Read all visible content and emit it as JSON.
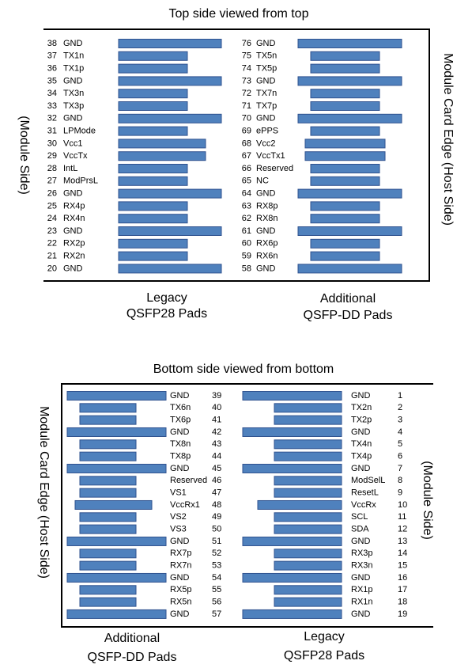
{
  "top": {
    "title": "Top side viewed from top",
    "left_label": "(Module Side)",
    "right_label": "Module Card Edge (Host Side)",
    "left_caption": [
      "Legacy",
      "QSFP28 Pads"
    ],
    "right_caption": [
      "Additional",
      "QSFP-DD Pads"
    ],
    "left_pins": [
      {
        "number": 38,
        "name": "GND"
      },
      {
        "number": 37,
        "name": "TX1n"
      },
      {
        "number": 36,
        "name": "TX1p"
      },
      {
        "number": 35,
        "name": "GND"
      },
      {
        "number": 34,
        "name": "TX3n"
      },
      {
        "number": 33,
        "name": "TX3p"
      },
      {
        "number": 32,
        "name": "GND"
      },
      {
        "number": 31,
        "name": "LPMode"
      },
      {
        "number": 30,
        "name": "Vcc1"
      },
      {
        "number": 29,
        "name": "VccTx"
      },
      {
        "number": 28,
        "name": "IntL"
      },
      {
        "number": 27,
        "name": "ModPrsL"
      },
      {
        "number": 26,
        "name": "GND"
      },
      {
        "number": 25,
        "name": "RX4p"
      },
      {
        "number": 24,
        "name": "RX4n"
      },
      {
        "number": 23,
        "name": "GND"
      },
      {
        "number": 22,
        "name": "RX2p"
      },
      {
        "number": 21,
        "name": "RX2n"
      },
      {
        "number": 20,
        "name": "GND"
      }
    ],
    "right_pins": [
      {
        "number": 76,
        "name": "GND"
      },
      {
        "number": 75,
        "name": "TX5n"
      },
      {
        "number": 74,
        "name": "TX5p"
      },
      {
        "number": 73,
        "name": "GND"
      },
      {
        "number": 72,
        "name": "TX7n"
      },
      {
        "number": 71,
        "name": "TX7p"
      },
      {
        "number": 70,
        "name": "GND"
      },
      {
        "number": 69,
        "name": "ePPS"
      },
      {
        "number": 68,
        "name": "Vcc2"
      },
      {
        "number": 67,
        "name": "VccTx1"
      },
      {
        "number": 66,
        "name": "Reserved"
      },
      {
        "number": 65,
        "name": "NC"
      },
      {
        "number": 64,
        "name": "GND"
      },
      {
        "number": 63,
        "name": "RX8p"
      },
      {
        "number": 62,
        "name": "RX8n"
      },
      {
        "number": 61,
        "name": "GND"
      },
      {
        "number": 60,
        "name": "RX6p"
      },
      {
        "number": 59,
        "name": "RX6n"
      },
      {
        "number": 58,
        "name": "GND"
      }
    ]
  },
  "bottom": {
    "title": "Bottom side viewed from bottom",
    "left_label": "Module Card Edge (Host Side)",
    "right_label": "(Module Side)",
    "left_caption": [
      "Additional",
      "QSFP-DD Pads"
    ],
    "right_caption": [
      "Legacy",
      "QSFP28 Pads"
    ],
    "left_pins": [
      {
        "name": "GND",
        "number": 39
      },
      {
        "name": "TX6n",
        "number": 40
      },
      {
        "name": "TX6p",
        "number": 41
      },
      {
        "name": "GND",
        "number": 42
      },
      {
        "name": "TX8n",
        "number": 43
      },
      {
        "name": "TX8p",
        "number": 44
      },
      {
        "name": "GND",
        "number": 45
      },
      {
        "name": "Reserved",
        "number": 46
      },
      {
        "name": "VS1",
        "number": 47
      },
      {
        "name": "VccRx1",
        "number": 48
      },
      {
        "name": "VS2",
        "number": 49
      },
      {
        "name": "VS3",
        "number": 50
      },
      {
        "name": "GND",
        "number": 51
      },
      {
        "name": "RX7p",
        "number": 52
      },
      {
        "name": "RX7n",
        "number": 53
      },
      {
        "name": "GND",
        "number": 54
      },
      {
        "name": "RX5p",
        "number": 55
      },
      {
        "name": "RX5n",
        "number": 56
      },
      {
        "name": "GND",
        "number": 57
      }
    ],
    "right_pins": [
      {
        "name": "GND",
        "number": 1
      },
      {
        "name": "TX2n",
        "number": 2
      },
      {
        "name": "TX2p",
        "number": 3
      },
      {
        "name": "GND",
        "number": 4
      },
      {
        "name": "TX4n",
        "number": 5
      },
      {
        "name": "TX4p",
        "number": 6
      },
      {
        "name": "GND",
        "number": 7
      },
      {
        "name": "ModSelL",
        "number": 8
      },
      {
        "name": "ResetL",
        "number": 9
      },
      {
        "name": "VccRx",
        "number": 10
      },
      {
        "name": "SCL",
        "number": 11
      },
      {
        "name": "SDA",
        "number": 12
      },
      {
        "name": "GND",
        "number": 13
      },
      {
        "name": "RX3p",
        "number": 14
      },
      {
        "name": "RX3n",
        "number": 15
      },
      {
        "name": "GND",
        "number": 16
      },
      {
        "name": "RX1p",
        "number": 17
      },
      {
        "name": "RX1n",
        "number": 18
      },
      {
        "name": "GND",
        "number": 19
      }
    ]
  }
}
